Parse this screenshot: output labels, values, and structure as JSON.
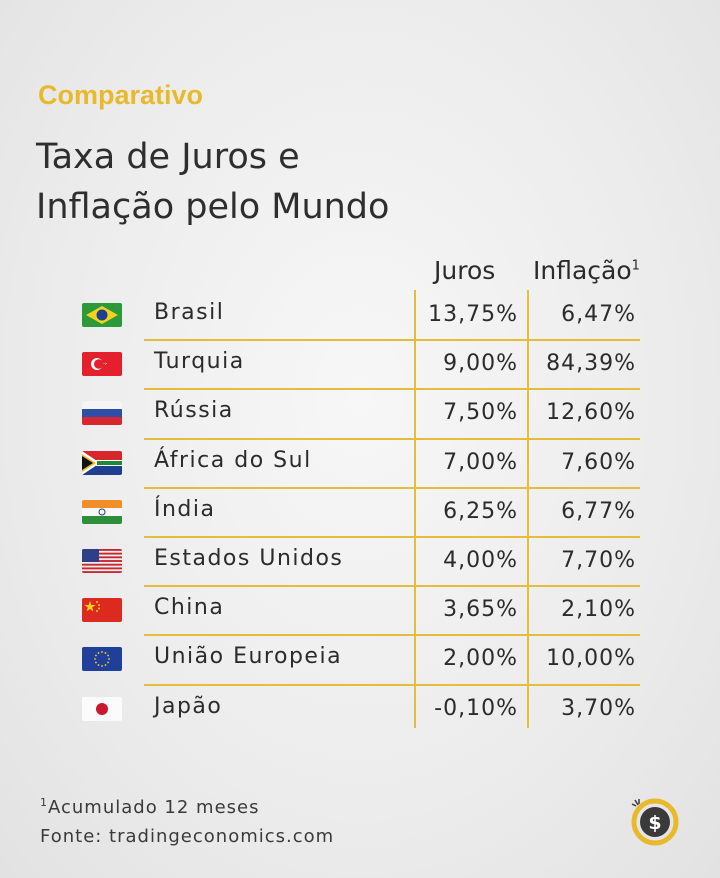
{
  "header": {
    "kicker": "Comparativo",
    "title_line1": "Taxa de Juros e",
    "title_line2": "Inflação pelo Mundo"
  },
  "columns": {
    "juros": "Juros",
    "inflacao": "Inflação",
    "inflacao_note_mark": "1"
  },
  "chart_data": {
    "type": "table",
    "columns": [
      "Juros",
      "Inflação"
    ],
    "rows": [
      {
        "country": "Brasil",
        "flag": "brazil-flag-icon",
        "juros": "13,75%",
        "inflacao": "6,47%"
      },
      {
        "country": "Turquia",
        "flag": "turkey-flag-icon",
        "juros": "9,00%",
        "inflacao": "84,39%"
      },
      {
        "country": "Rússia",
        "flag": "russia-flag-icon",
        "juros": "7,50%",
        "inflacao": "12,60%"
      },
      {
        "country": "África do Sul",
        "flag": "south-africa-flag-icon",
        "juros": "7,00%",
        "inflacao": "7,60%"
      },
      {
        "country": "Índia",
        "flag": "india-flag-icon",
        "juros": "6,25%",
        "inflacao": "6,77%"
      },
      {
        "country": "Estados Unidos",
        "flag": "usa-flag-icon",
        "juros": "4,00%",
        "inflacao": "7,70%"
      },
      {
        "country": "China",
        "flag": "china-flag-icon",
        "juros": "3,65%",
        "inflacao": "2,10%"
      },
      {
        "country": "União Europeia",
        "flag": "eu-flag-icon",
        "juros": "2,00%",
        "inflacao": "10,00%"
      },
      {
        "country": "Japão",
        "flag": "japan-flag-icon",
        "juros": "-0,10%",
        "inflacao": "3,70%"
      }
    ]
  },
  "footer": {
    "note_mark": "1",
    "note_text": "Acumulado 12 meses",
    "source": "Fonte: tradingeconomics.com",
    "logo_icon": "dollar-coin-logo-icon"
  },
  "colors": {
    "accent": "#e9b92c",
    "gridline": "#e6bd3a",
    "text": "#2b2b2b",
    "background": "#ececec"
  }
}
